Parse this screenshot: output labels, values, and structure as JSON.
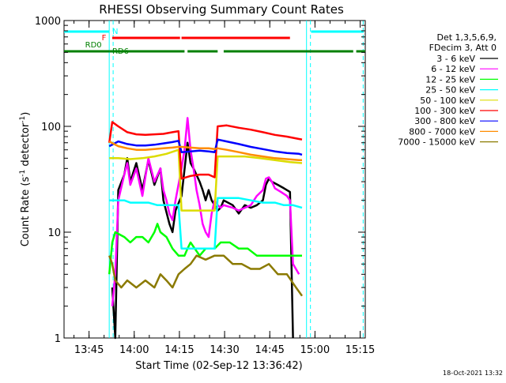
{
  "chart_data": {
    "type": "line",
    "title": "RHESSI Observing Summary Count Rates",
    "xlabel": "Start Time (02-Sep-12 13:36:42)",
    "ylabel_main": "Count Rate (s",
    "ylabel_sup1": "-1",
    "ylabel_mid": " detector",
    "ylabel_sup2": "-1",
    "ylabel_end": ")",
    "y_scale": "log",
    "ylim": [
      1,
      1000
    ],
    "xlim_minutes": [
      0,
      100
    ],
    "y_ticks": [
      {
        "value": 1,
        "label": "1"
      },
      {
        "value": 10,
        "label": "10"
      },
      {
        "value": 100,
        "label": "100"
      },
      {
        "value": 1000,
        "label": "1000"
      }
    ],
    "x_ticks": [
      {
        "minutes": 8.3,
        "label": "13:45"
      },
      {
        "minutes": 23.3,
        "label": "14:00"
      },
      {
        "minutes": 38.3,
        "label": "14:15"
      },
      {
        "minutes": 53.3,
        "label": "14:30"
      },
      {
        "minutes": 68.3,
        "label": "14:45"
      },
      {
        "minutes": 83.3,
        "label": "15:00"
      },
      {
        "minutes": 98.3,
        "label": "15:15"
      }
    ],
    "legend_header": [
      "Det 1,3,5,6,9,",
      "FDecim 3, Att 0"
    ],
    "legend_placement": "right",
    "series": [
      {
        "name": "3 - 6 keV",
        "color": "#000000",
        "points": [
          [
            16,
            3
          ],
          [
            17,
            1
          ],
          [
            18,
            25
          ],
          [
            20,
            35
          ],
          [
            21,
            50
          ],
          [
            22,
            30
          ],
          [
            24,
            45
          ],
          [
            26,
            25
          ],
          [
            28,
            48
          ],
          [
            30,
            28
          ],
          [
            32,
            40
          ],
          [
            33,
            20
          ],
          [
            35,
            12
          ],
          [
            36,
            10
          ],
          [
            37,
            16
          ],
          [
            39,
            22
          ],
          [
            41,
            70
          ],
          [
            42,
            45
          ],
          [
            43,
            40
          ],
          [
            45,
            30
          ],
          [
            46,
            25
          ],
          [
            47,
            20
          ],
          [
            48,
            25
          ],
          [
            49,
            20
          ],
          [
            50,
            18
          ],
          [
            51,
            16
          ],
          [
            52,
            17
          ],
          [
            53,
            20
          ],
          [
            56,
            18
          ],
          [
            58,
            15
          ],
          [
            60,
            18
          ],
          [
            62,
            17
          ],
          [
            64,
            18
          ],
          [
            66,
            20
          ],
          [
            67,
            28
          ],
          [
            68,
            32
          ],
          [
            69,
            30
          ],
          [
            71,
            28
          ],
          [
            73,
            26
          ],
          [
            75,
            24
          ],
          [
            76,
            1
          ]
        ]
      },
      {
        "name": "6 - 12 keV",
        "color": "#ff00ff",
        "points": [
          [
            16,
            2
          ],
          [
            17,
            4
          ],
          [
            18,
            20
          ],
          [
            20,
            35
          ],
          [
            21,
            45
          ],
          [
            22,
            28
          ],
          [
            24,
            40
          ],
          [
            26,
            22
          ],
          [
            28,
            50
          ],
          [
            30,
            30
          ],
          [
            32,
            40
          ],
          [
            33,
            25
          ],
          [
            34,
            20
          ],
          [
            35,
            15
          ],
          [
            36,
            13
          ],
          [
            37,
            20
          ],
          [
            39,
            40
          ],
          [
            40,
            60
          ],
          [
            41,
            120
          ],
          [
            42,
            60
          ],
          [
            43,
            40
          ],
          [
            44,
            25
          ],
          [
            45,
            18
          ],
          [
            46,
            12
          ],
          [
            47,
            10
          ],
          [
            48,
            9
          ],
          [
            49,
            15
          ],
          [
            50,
            20
          ],
          [
            51,
            18
          ],
          [
            52,
            17
          ],
          [
            53,
            18
          ],
          [
            56,
            17
          ],
          [
            58,
            16
          ],
          [
            60,
            17
          ],
          [
            62,
            18
          ],
          [
            64,
            22
          ],
          [
            66,
            25
          ],
          [
            67,
            32
          ],
          [
            68,
            33
          ],
          [
            69,
            30
          ],
          [
            70,
            26
          ],
          [
            72,
            24
          ],
          [
            74,
            22
          ],
          [
            75,
            20
          ],
          [
            76,
            5
          ],
          [
            78,
            4
          ]
        ]
      },
      {
        "name": "12 - 25 keV",
        "color": "#00ff00",
        "points": [
          [
            15,
            4
          ],
          [
            16,
            8
          ],
          [
            17,
            10
          ],
          [
            20,
            9
          ],
          [
            22,
            8
          ],
          [
            24,
            9
          ],
          [
            26,
            9
          ],
          [
            28,
            8
          ],
          [
            30,
            10
          ],
          [
            31,
            12
          ],
          [
            32,
            10
          ],
          [
            34,
            9
          ],
          [
            36,
            7
          ],
          [
            38,
            6
          ],
          [
            40,
            6
          ],
          [
            41,
            7
          ],
          [
            42,
            8
          ],
          [
            45,
            6
          ],
          [
            47,
            7
          ],
          [
            50,
            7
          ],
          [
            52,
            8
          ],
          [
            55,
            8
          ],
          [
            58,
            7
          ],
          [
            61,
            7
          ],
          [
            64,
            6
          ],
          [
            67,
            6
          ],
          [
            70,
            6
          ],
          [
            73,
            6
          ],
          [
            76,
            6
          ],
          [
            79,
            6
          ]
        ]
      },
      {
        "name": "25 - 50 keV",
        "color": "#00ffff",
        "points": [
          [
            15,
            20
          ],
          [
            17,
            20
          ],
          [
            20,
            20
          ],
          [
            22,
            19
          ],
          [
            25,
            19
          ],
          [
            28,
            19
          ],
          [
            31,
            18
          ],
          [
            34,
            18
          ],
          [
            36,
            18
          ],
          [
            38,
            18
          ],
          [
            39,
            7
          ],
          [
            42,
            7
          ],
          [
            46,
            7
          ],
          [
            49,
            7
          ],
          [
            50,
            7
          ],
          [
            51,
            21
          ],
          [
            54,
            21
          ],
          [
            58,
            21
          ],
          [
            62,
            20
          ],
          [
            66,
            19
          ],
          [
            70,
            19
          ],
          [
            73,
            18
          ],
          [
            76,
            18
          ],
          [
            79,
            17
          ]
        ]
      },
      {
        "name": "50 - 100 keV",
        "color": "#dcdc00",
        "points": [
          [
            15,
            50
          ],
          [
            18,
            50
          ],
          [
            22,
            49
          ],
          [
            26,
            50
          ],
          [
            30,
            52
          ],
          [
            34,
            55
          ],
          [
            38,
            60
          ],
          [
            39,
            16
          ],
          [
            42,
            16
          ],
          [
            46,
            16
          ],
          [
            49,
            16
          ],
          [
            50,
            16
          ],
          [
            51,
            52
          ],
          [
            55,
            52
          ],
          [
            60,
            52
          ],
          [
            65,
            50
          ],
          [
            70,
            48
          ],
          [
            75,
            46
          ],
          [
            79,
            45
          ]
        ]
      },
      {
        "name": "100 - 300 keV",
        "color": "#ff0000",
        "points": [
          [
            15,
            70
          ],
          [
            16,
            110
          ],
          [
            18,
            100
          ],
          [
            21,
            88
          ],
          [
            24,
            84
          ],
          [
            27,
            83
          ],
          [
            30,
            84
          ],
          [
            33,
            85
          ],
          [
            36,
            88
          ],
          [
            38,
            90
          ],
          [
            39,
            32
          ],
          [
            42,
            34
          ],
          [
            45,
            35
          ],
          [
            48,
            35
          ],
          [
            50,
            33
          ],
          [
            51,
            100
          ],
          [
            54,
            102
          ],
          [
            58,
            97
          ],
          [
            62,
            93
          ],
          [
            66,
            88
          ],
          [
            70,
            83
          ],
          [
            74,
            80
          ],
          [
            78,
            76
          ],
          [
            79,
            75
          ]
        ]
      },
      {
        "name": "300 - 800 keV",
        "color": "#0000ff",
        "points": [
          [
            15,
            65
          ],
          [
            18,
            72
          ],
          [
            21,
            68
          ],
          [
            24,
            66
          ],
          [
            27,
            66
          ],
          [
            30,
            67
          ],
          [
            33,
            69
          ],
          [
            36,
            71
          ],
          [
            38,
            73
          ],
          [
            39,
            57
          ],
          [
            42,
            58
          ],
          [
            45,
            59
          ],
          [
            48,
            58
          ],
          [
            50,
            57
          ],
          [
            51,
            75
          ],
          [
            54,
            72
          ],
          [
            58,
            68
          ],
          [
            62,
            64
          ],
          [
            66,
            61
          ],
          [
            70,
            58
          ],
          [
            74,
            56
          ],
          [
            78,
            55
          ],
          [
            79,
            54
          ]
        ]
      },
      {
        "name": "800 - 7000 keV",
        "color": "#ff8c00",
        "points": [
          [
            15,
            72
          ],
          [
            18,
            65
          ],
          [
            21,
            62
          ],
          [
            24,
            60
          ],
          [
            27,
            60
          ],
          [
            30,
            61
          ],
          [
            33,
            62
          ],
          [
            36,
            63
          ],
          [
            38,
            64
          ],
          [
            39,
            64
          ],
          [
            42,
            63
          ],
          [
            45,
            62
          ],
          [
            48,
            62
          ],
          [
            50,
            61
          ],
          [
            51,
            62
          ],
          [
            54,
            60
          ],
          [
            58,
            57
          ],
          [
            62,
            54
          ],
          [
            66,
            52
          ],
          [
            70,
            50
          ],
          [
            74,
            49
          ],
          [
            78,
            48
          ],
          [
            79,
            48
          ]
        ]
      },
      {
        "name": "7000 - 15000 keV",
        "color": "#8b7a00",
        "points": [
          [
            15,
            6
          ],
          [
            16,
            5
          ],
          [
            17,
            3.5
          ],
          [
            19,
            3
          ],
          [
            21,
            3.5
          ],
          [
            24,
            3
          ],
          [
            27,
            3.5
          ],
          [
            30,
            3
          ],
          [
            32,
            4
          ],
          [
            34,
            3.5
          ],
          [
            36,
            3
          ],
          [
            38,
            4
          ],
          [
            40,
            4.5
          ],
          [
            42,
            5
          ],
          [
            44,
            6
          ],
          [
            47,
            5.5
          ],
          [
            50,
            6
          ],
          [
            53,
            6
          ],
          [
            56,
            5
          ],
          [
            59,
            5
          ],
          [
            62,
            4.5
          ],
          [
            65,
            4.5
          ],
          [
            68,
            5
          ],
          [
            71,
            4
          ],
          [
            74,
            4
          ],
          [
            77,
            3
          ],
          [
            79,
            2.5
          ]
        ]
      }
    ],
    "flag_bars": [
      {
        "label": "N",
        "color": "#00ffff",
        "segments": [
          [
            0,
            15
          ],
          [
            82,
            99.5
          ]
        ],
        "label_at": 16
      },
      {
        "label": "F",
        "color": "#ff0000",
        "segments": [
          [
            16,
            38.5
          ],
          [
            39,
            75
          ]
        ],
        "label_at": 14
      },
      {
        "label": "RD0",
        "color": "#008000",
        "segments": [
          [
            0,
            15
          ],
          [
            15,
            40
          ],
          [
            41,
            51
          ],
          [
            53,
            96
          ],
          [
            97,
            100
          ]
        ],
        "label_at": 7
      },
      {
        "label": "RD6",
        "color": "#008000",
        "segments": [],
        "label_at": 16
      }
    ],
    "vlines": [
      {
        "minutes": 15,
        "color": "#00ffff",
        "style": "solid"
      },
      {
        "minutes": 16.3,
        "color": "#00ffff",
        "style": "dashed"
      },
      {
        "minutes": 80.5,
        "color": "#00ffff",
        "style": "solid"
      },
      {
        "minutes": 81.8,
        "color": "#00ffff",
        "style": "dashed"
      },
      {
        "minutes": 99.3,
        "color": "#00ffff",
        "style": "dashed"
      }
    ]
  },
  "footer_text": "18-Oct-2021 13:32"
}
